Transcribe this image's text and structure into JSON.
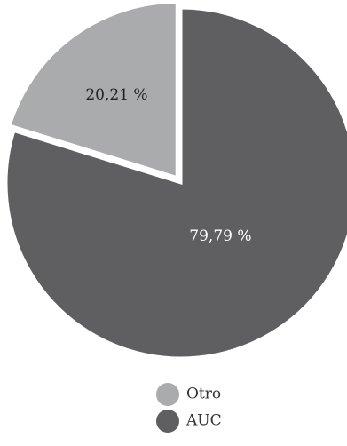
{
  "chart_data": {
    "type": "pie",
    "slices": [
      {
        "label": "AUC",
        "value": 79.79,
        "value_label": "79,79 %",
        "color": "#5f5f61",
        "label_color": "#ffffff"
      },
      {
        "label": "Otro",
        "value": 20.21,
        "value_label": "20,21 %",
        "color": "#a9abad",
        "label_color": "#222222"
      }
    ],
    "start": "top, clockwise",
    "exploded_slice": "Otro",
    "legend_placement": "bottom-center",
    "legend_order": [
      "Otro",
      "AUC"
    ]
  }
}
